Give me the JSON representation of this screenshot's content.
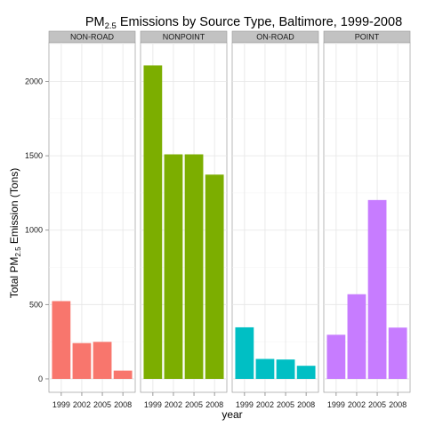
{
  "chart_data": {
    "type": "bar",
    "title": {
      "prefix": "PM",
      "subscript": "2.5",
      "suffix": " Emissions by Source Type, Baltimore, 1999-2008"
    },
    "xlabel": "year",
    "ylabel": {
      "prefix": "Total PM",
      "subscript": "2.5",
      "suffix": " Emission (Tons)"
    },
    "categories": [
      "1999",
      "2002",
      "2005",
      "2008"
    ],
    "ylim": [
      -90,
      2260
    ],
    "yticks": [
      0,
      500,
      1000,
      1500,
      2000
    ],
    "grid": true,
    "legend": "none",
    "facets": [
      {
        "name": "NON-ROAD",
        "color": "#F8766D",
        "values": [
          522.94,
          240.85,
          248.93,
          55.82
        ]
      },
      {
        "name": "NONPOINT",
        "color": "#7CAE00",
        "values": [
          2107.63,
          1509.5,
          1509.5,
          1373.21
        ]
      },
      {
        "name": "ON-ROAD",
        "color": "#00BFC4",
        "values": [
          346.82,
          134.31,
          130.43,
          88.28
        ]
      },
      {
        "name": "POINT",
        "color": "#C77CFF",
        "values": [
          296.8,
          569.26,
          1202.49,
          344.98
        ]
      }
    ]
  }
}
